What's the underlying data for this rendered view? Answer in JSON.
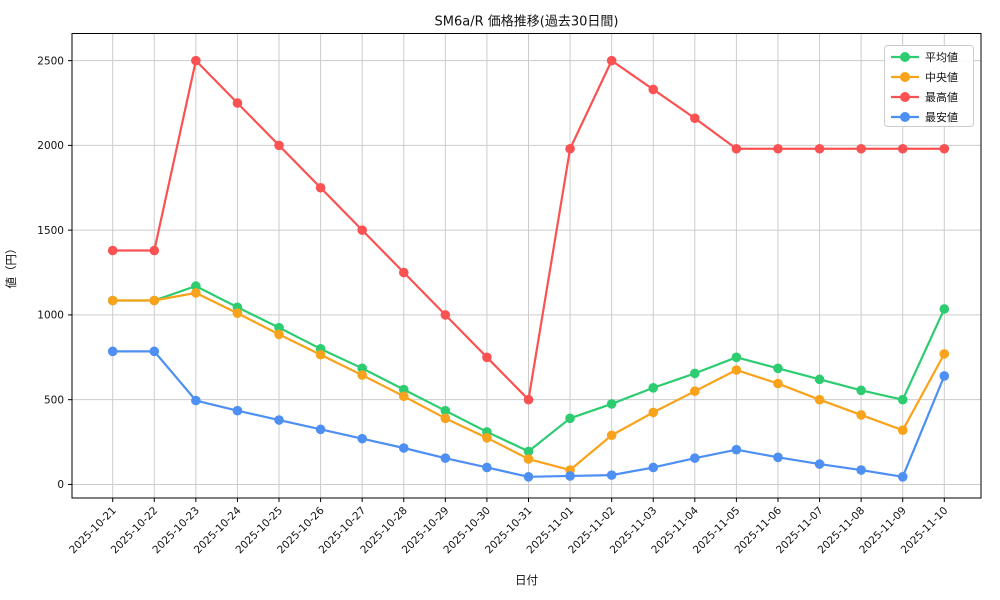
{
  "chart_data": {
    "type": "line",
    "title": "SM6a/R 価格推移(過去30日間)",
    "xlabel": "日付",
    "ylabel": "値（円）",
    "x": [
      "2025-10-21",
      "2025-10-22",
      "2025-10-23",
      "2025-10-24",
      "2025-10-25",
      "2025-10-26",
      "2025-10-27",
      "2025-10-28",
      "2025-10-29",
      "2025-10-30",
      "2025-10-31",
      "2025-11-01",
      "2025-11-02",
      "2025-11-03",
      "2025-11-04",
      "2025-11-05",
      "2025-11-06",
      "2025-11-07",
      "2025-11-08",
      "2025-11-09",
      "2025-11-10"
    ],
    "yticks": [
      0,
      500,
      1000,
      1500,
      2000,
      2500
    ],
    "ylim": [
      -80,
      2660
    ],
    "grid": true,
    "legend_position": "upper-right",
    "series": [
      {
        "key": "average",
        "name": "平均値",
        "color": "#2ecc71",
        "values": [
          1085,
          1085,
          1170,
          1045,
          925,
          800,
          685,
          560,
          435,
          310,
          195,
          390,
          475,
          570,
          655,
          750,
          685,
          620,
          555,
          500,
          1035
        ]
      },
      {
        "key": "median",
        "name": "中央値",
        "color": "#f9a21b",
        "values": [
          1085,
          1085,
          1130,
          1010,
          885,
          765,
          645,
          520,
          390,
          275,
          150,
          85,
          290,
          425,
          550,
          675,
          595,
          500,
          410,
          320,
          770
        ]
      },
      {
        "key": "max",
        "name": "最高値",
        "color": "#fa5252",
        "values": [
          1380,
          1380,
          2500,
          2250,
          2000,
          1750,
          1500,
          1250,
          1000,
          750,
          500,
          1980,
          2500,
          2330,
          2160,
          1980,
          1980,
          1980,
          1980,
          1980,
          1980
        ]
      },
      {
        "key": "min",
        "name": "最安値",
        "color": "#4d8ff2",
        "values": [
          785,
          785,
          495,
          435,
          380,
          325,
          270,
          215,
          155,
          100,
          45,
          50,
          55,
          100,
          155,
          205,
          160,
          120,
          85,
          45,
          640
        ]
      }
    ]
  }
}
